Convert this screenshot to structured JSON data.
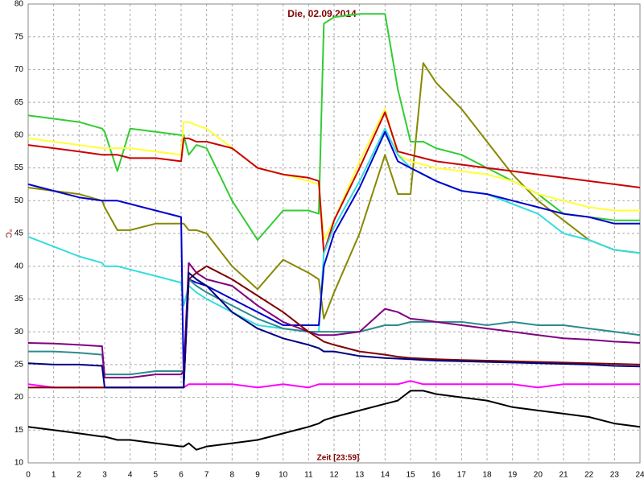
{
  "chart_data": {
    "type": "line",
    "title": "Die, 02.09.2014",
    "ylabel": "°C",
    "xlabel": "Zeit [23:59]",
    "x": [
      0,
      1,
      2,
      2.9,
      3,
      3.5,
      4,
      5,
      6,
      6.1,
      6.3,
      6.6,
      7,
      8,
      9,
      10,
      11,
      11.4,
      11.6,
      12,
      13,
      14,
      14.5,
      15,
      15.5,
      16,
      17,
      18,
      19,
      20,
      21,
      22,
      23,
      24
    ],
    "xlim": [
      0,
      24
    ],
    "xticks": [
      0,
      1,
      2,
      3,
      4,
      5,
      6,
      7,
      8,
      9,
      10,
      11,
      12,
      13,
      14,
      15,
      16,
      17,
      18,
      19,
      20,
      21,
      22,
      23,
      24
    ],
    "ylim": [
      10,
      80
    ],
    "yticks": [
      10,
      15,
      20,
      25,
      30,
      35,
      40,
      45,
      50,
      55,
      60,
      65,
      70,
      75,
      80
    ],
    "grid": true,
    "series": [
      {
        "color": "#ff00ff",
        "values": [
          22,
          21.5,
          21.5,
          21.5,
          21.5,
          21.5,
          21.5,
          21.5,
          21.5,
          21.5,
          22,
          22,
          22,
          22,
          21.5,
          22,
          21.5,
          22,
          22,
          22,
          22,
          22,
          22,
          22.5,
          22,
          22,
          22,
          22,
          22,
          21.5,
          22,
          22,
          22,
          22
        ]
      },
      {
        "color": "#000000",
        "values": [
          15.5,
          15,
          14.5,
          14,
          14,
          13.5,
          13.5,
          13,
          12.5,
          12.5,
          13,
          12,
          12.5,
          13,
          13.5,
          14.5,
          15.5,
          16,
          16.5,
          17,
          18,
          19,
          19.5,
          21,
          21,
          20.5,
          20,
          19.5,
          18.5,
          18,
          17.5,
          17,
          16,
          15.5
        ]
      },
      {
        "color": "#888800",
        "values": [
          52,
          51.5,
          51,
          50,
          49,
          45.5,
          45.5,
          46.5,
          46.5,
          46.5,
          45.5,
          45.5,
          45,
          40,
          36.5,
          41,
          39,
          38,
          32,
          36,
          45,
          57,
          51,
          51,
          71,
          68,
          64,
          59,
          54,
          50,
          47,
          44,
          42.5,
          42
        ]
      },
      {
        "color": "#33cc33",
        "values": [
          63,
          62.5,
          62,
          61,
          60.5,
          54.5,
          61,
          60.5,
          60,
          60,
          57,
          58.5,
          58,
          50,
          44,
          48.5,
          48.5,
          48,
          77,
          78,
          78.5,
          78.5,
          67,
          59,
          59,
          58,
          57,
          55,
          53,
          51,
          48,
          47.5,
          47,
          47
        ]
      },
      {
        "color": "#ffff33",
        "values": [
          59.5,
          59,
          58.5,
          58,
          58,
          58,
          58,
          57.5,
          57,
          62,
          62,
          61.5,
          61,
          58,
          55,
          54,
          53,
          52.5,
          44,
          47,
          56,
          64,
          57,
          56,
          55.5,
          55,
          54.5,
          54,
          53,
          51,
          50,
          49,
          48.5,
          48.5
        ]
      },
      {
        "color": "#cc0000",
        "values": [
          58.5,
          58,
          57.5,
          57,
          57,
          57,
          56.5,
          56.5,
          56,
          59.5,
          59.5,
          59,
          59,
          58,
          55,
          54,
          53.5,
          53,
          42,
          47,
          55,
          63.5,
          57.5,
          57,
          56.5,
          56,
          55.5,
          55,
          54.5,
          54,
          53.5,
          53,
          52.5,
          52
        ]
      },
      {
        "color": "#33dddd",
        "values": [
          44.5,
          43,
          41.5,
          40.5,
          40,
          40,
          39.5,
          38.5,
          37.5,
          34,
          37,
          36,
          35,
          33,
          31,
          30.5,
          30,
          30,
          42,
          46,
          53,
          61,
          57,
          55,
          54,
          53,
          51.5,
          51,
          49.5,
          48,
          45,
          44,
          42.5,
          42
        ]
      },
      {
        "color": "#0000cc",
        "values": [
          52.5,
          51.5,
          50.5,
          50,
          50,
          50,
          49.5,
          48.5,
          47.5,
          22,
          38,
          37.5,
          37,
          35,
          33,
          31,
          31,
          31,
          40,
          45,
          52,
          60.5,
          56,
          55,
          54,
          53,
          51.5,
          51,
          50,
          49,
          48,
          47.5,
          46.5,
          46.5
        ]
      },
      {
        "color": "#2e8b8b",
        "values": [
          27,
          27,
          26.8,
          26.5,
          23.5,
          23.5,
          23.5,
          24,
          24,
          24,
          38,
          37,
          36,
          34,
          32,
          30.5,
          30,
          30,
          30,
          30,
          30,
          31,
          31,
          31.5,
          31.5,
          31.5,
          31.5,
          31,
          31.5,
          31,
          31,
          30.5,
          30,
          29.5
        ]
      },
      {
        "color": "#800080",
        "values": [
          28.3,
          28.2,
          28,
          27.8,
          23,
          23,
          23,
          23.5,
          23.5,
          24,
          40.5,
          39,
          38,
          37,
          34,
          31.5,
          30,
          29.5,
          29.5,
          29.5,
          30,
          33.5,
          33,
          32,
          31.8,
          31.5,
          31,
          30.5,
          30,
          29.5,
          29,
          28.8,
          28.5,
          28.3
        ]
      },
      {
        "color": "#800000",
        "values": [
          21.5,
          21.5,
          21.5,
          21.5,
          21.5,
          21.5,
          21.5,
          21.5,
          21.5,
          21.5,
          38,
          39,
          40,
          38,
          35.5,
          33,
          30,
          29,
          28.5,
          28,
          27,
          26.5,
          26.2,
          26,
          25.9,
          25.8,
          25.7,
          25.6,
          25.5,
          25.4,
          25.3,
          25.2,
          25.1,
          25
        ]
      },
      {
        "color": "#000080",
        "values": [
          25.2,
          25,
          25,
          24.8,
          21.5,
          21.5,
          21.5,
          21.5,
          21.5,
          21.5,
          39,
          38,
          37,
          33,
          30.5,
          29,
          28,
          27.5,
          27,
          27,
          26.3,
          26,
          25.9,
          25.8,
          25.7,
          25.6,
          25.5,
          25.4,
          25.3,
          25.2,
          25.1,
          25,
          24.8,
          24.7
        ]
      }
    ]
  }
}
